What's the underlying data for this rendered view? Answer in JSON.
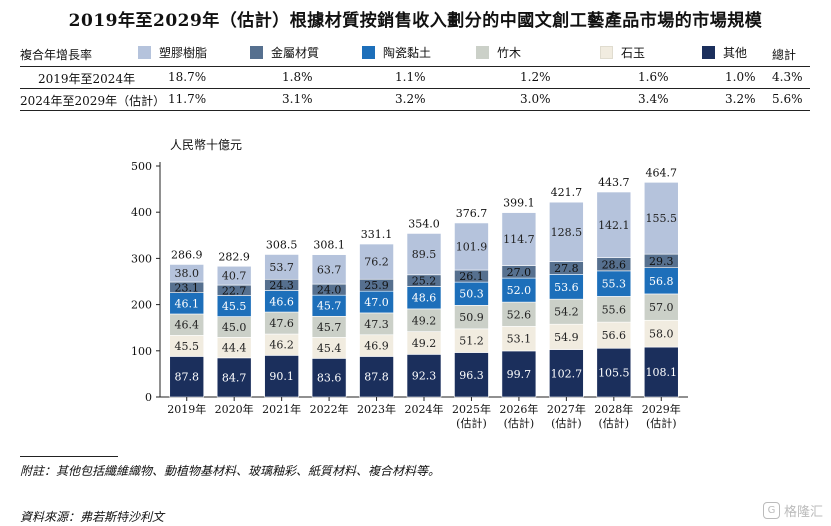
{
  "chart_data": {
    "type": "bar",
    "stacked": true,
    "title": "2019年至2029年（估計）根據材質按銷售收入劃分的中國文創工藝產品市場的市場規模",
    "ylabel": "人民幣十億元",
    "ylim": [
      0,
      500
    ],
    "yticks": [
      0,
      100,
      200,
      300,
      400,
      500
    ],
    "categories": [
      "2019年",
      "2020年",
      "2021年",
      "2022年",
      "2023年",
      "2024年",
      "2025年\n(估計)",
      "2026年\n(估計)",
      "2027年\n(估計)",
      "2028年\n(估計)",
      "2029年\n(估計)"
    ],
    "series": [
      {
        "name": "其他",
        "color": "#1b2f5c",
        "label_color": "#ffffff",
        "values": [
          87.8,
          84.7,
          90.1,
          83.6,
          87.8,
          92.3,
          96.3,
          99.7,
          102.7,
          105.5,
          108.1
        ]
      },
      {
        "name": "石玉",
        "color": "#f1ece0",
        "label_color": "#222222",
        "values": [
          45.5,
          44.4,
          46.2,
          45.4,
          46.9,
          49.2,
          51.2,
          53.1,
          54.9,
          56.6,
          58.0
        ]
      },
      {
        "name": "竹木",
        "color": "#cbd0c8",
        "label_color": "#222222",
        "values": [
          46.4,
          45.0,
          47.6,
          45.7,
          47.3,
          49.2,
          50.9,
          52.6,
          54.2,
          55.6,
          57.0
        ]
      },
      {
        "name": "陶瓷黏土",
        "color": "#1d6fba",
        "label_color": "#ffffff",
        "values": [
          46.1,
          45.5,
          46.6,
          45.7,
          47.0,
          48.6,
          50.3,
          52.0,
          53.6,
          55.3,
          56.8
        ]
      },
      {
        "name": "金屬材質",
        "color": "#56708f",
        "label_color": "#111111",
        "values": [
          23.1,
          22.7,
          24.3,
          24.0,
          25.9,
          25.2,
          26.1,
          27.0,
          27.8,
          28.6,
          29.3
        ]
      },
      {
        "name": "塑膠樹脂",
        "color": "#b5c3dc",
        "label_color": "#222222",
        "values": [
          38.0,
          40.7,
          53.7,
          63.7,
          76.2,
          89.5,
          101.9,
          114.7,
          128.5,
          142.1,
          155.5
        ]
      }
    ],
    "totals": [
      286.9,
      282.9,
      308.5,
      308.1,
      331.1,
      354.0,
      376.7,
      399.1,
      421.7,
      443.7,
      464.7
    ]
  },
  "cagr_table": {
    "header_label": "複合年增長率",
    "total_label": "總計",
    "legend": [
      {
        "name": "塑膠樹脂",
        "color": "#b5c3dc"
      },
      {
        "name": "金屬材質",
        "color": "#56708f"
      },
      {
        "name": "陶瓷黏土",
        "color": "#1d6fba"
      },
      {
        "name": "竹木",
        "color": "#cbd0c8"
      },
      {
        "name": "石玉",
        "color": "#f1ece0"
      },
      {
        "name": "其他",
        "color": "#1b2f5c"
      }
    ],
    "rows": [
      {
        "period": "2019年至2024年",
        "values": [
          "18.7%",
          "1.8%",
          "1.1%",
          "1.2%",
          "1.6%",
          "1.0%",
          "4.3%"
        ]
      },
      {
        "period": "2024年至2029年（估計）",
        "values": [
          "11.7%",
          "3.1%",
          "3.2%",
          "3.0%",
          "3.4%",
          "3.2%",
          "5.6%"
        ]
      }
    ]
  },
  "footnote": "附註：其他包括纖維織物、動植物基材料、玻璃釉彩、紙質材料、複合材料等。",
  "source": "資料來源：弗若斯特沙利文",
  "watermark": "格隆汇",
  "watermark_logo": "G"
}
